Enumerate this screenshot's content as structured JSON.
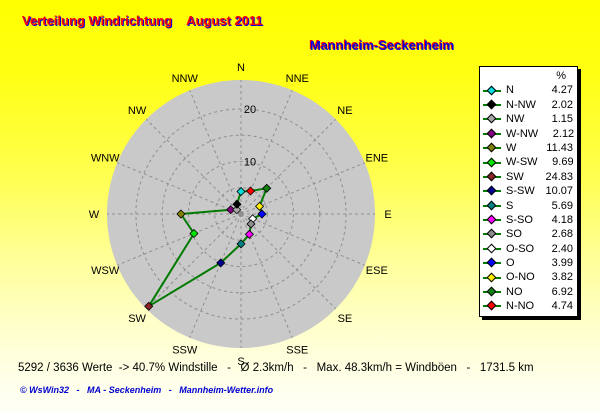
{
  "header": {
    "title": "Verteilung Windrichtung    August 2011",
    "subtitle": "Mannheim-Seckenheim",
    "title_color": "#ff0000",
    "title_shadow_color": "#0000dd",
    "subtitle_color": "#0000dd",
    "subtitle_shadow_color": "#ff0000"
  },
  "chart_data": {
    "type": "radar",
    "title": "Verteilung Windrichtung August 2011",
    "subtitle": "Mannheim-Seckenheim",
    "units": "%",
    "axis_max": 25.5,
    "rings": [
      5,
      10,
      15,
      20
    ],
    "tick_labels": [
      {
        "text": "10",
        "value": 10
      },
      {
        "text": "20",
        "value": 20
      }
    ],
    "disk_color": "#c9c9c9",
    "grid_color": "#8f8f8f",
    "line_color": "#007a00",
    "categories": [
      "N",
      "NNE",
      "NE",
      "ENE",
      "E",
      "ESE",
      "SE",
      "SSE",
      "S",
      "SSW",
      "SW",
      "WSW",
      "W",
      "WNW",
      "NW",
      "NNW"
    ],
    "values": [
      4.27,
      4.74,
      6.92,
      3.82,
      3.99,
      2.4,
      2.68,
      4.18,
      5.69,
      10.07,
      24.83,
      9.69,
      11.43,
      2.12,
      1.15,
      2.02
    ],
    "marker_colors": [
      "#00dddd",
      "#ff0000",
      "#118011",
      "#ffee00",
      "#0000ff",
      "#ffffff",
      "#8c8c8c",
      "#ff00ff",
      "#008080",
      "#000090",
      "#8b2525",
      "#00e400",
      "#808000",
      "#800080",
      "#a8a8a8",
      "#000000"
    ]
  },
  "legend": {
    "header": "%",
    "items": [
      {
        "label": "N",
        "value": "4.27",
        "color": "#00dddd"
      },
      {
        "label": "N-NW",
        "value": "2.02",
        "color": "#000000"
      },
      {
        "label": "NW",
        "value": "1.15",
        "color": "#a8a8a8"
      },
      {
        "label": "W-NW",
        "value": "2.12",
        "color": "#800080"
      },
      {
        "label": "W",
        "value": "11.43",
        "color": "#808000"
      },
      {
        "label": "W-SW",
        "value": "9.69",
        "color": "#00e400"
      },
      {
        "label": "SW",
        "value": "24.83",
        "color": "#8b2525"
      },
      {
        "label": "S-SW",
        "value": "10.07",
        "color": "#000090"
      },
      {
        "label": "S",
        "value": "5.69",
        "color": "#008080"
      },
      {
        "label": "S-SO",
        "value": "4.18",
        "color": "#ff00ff"
      },
      {
        "label": "SO",
        "value": "2.68",
        "color": "#8c8c8c"
      },
      {
        "label": "O-SO",
        "value": "2.40",
        "color": "#ffffff"
      },
      {
        "label": "O",
        "value": "3.99",
        "color": "#0000ff"
      },
      {
        "label": "O-NO",
        "value": "3.82",
        "color": "#ffee00"
      },
      {
        "label": "NO",
        "value": "6.92",
        "color": "#118011"
      },
      {
        "label": "N-NO",
        "value": "4.74",
        "color": "#ff0000"
      }
    ]
  },
  "footer": {
    "stats": "5292 / 3636 Werte  -> 40.7% Windstille   -   Ø 2.3km/h   -   Max. 48.3km/h = Windböen   -   1731.5 km",
    "copyright": "© WsWin32   -   MA - Seckenheim   -   Mannheim-Wetter.info"
  }
}
